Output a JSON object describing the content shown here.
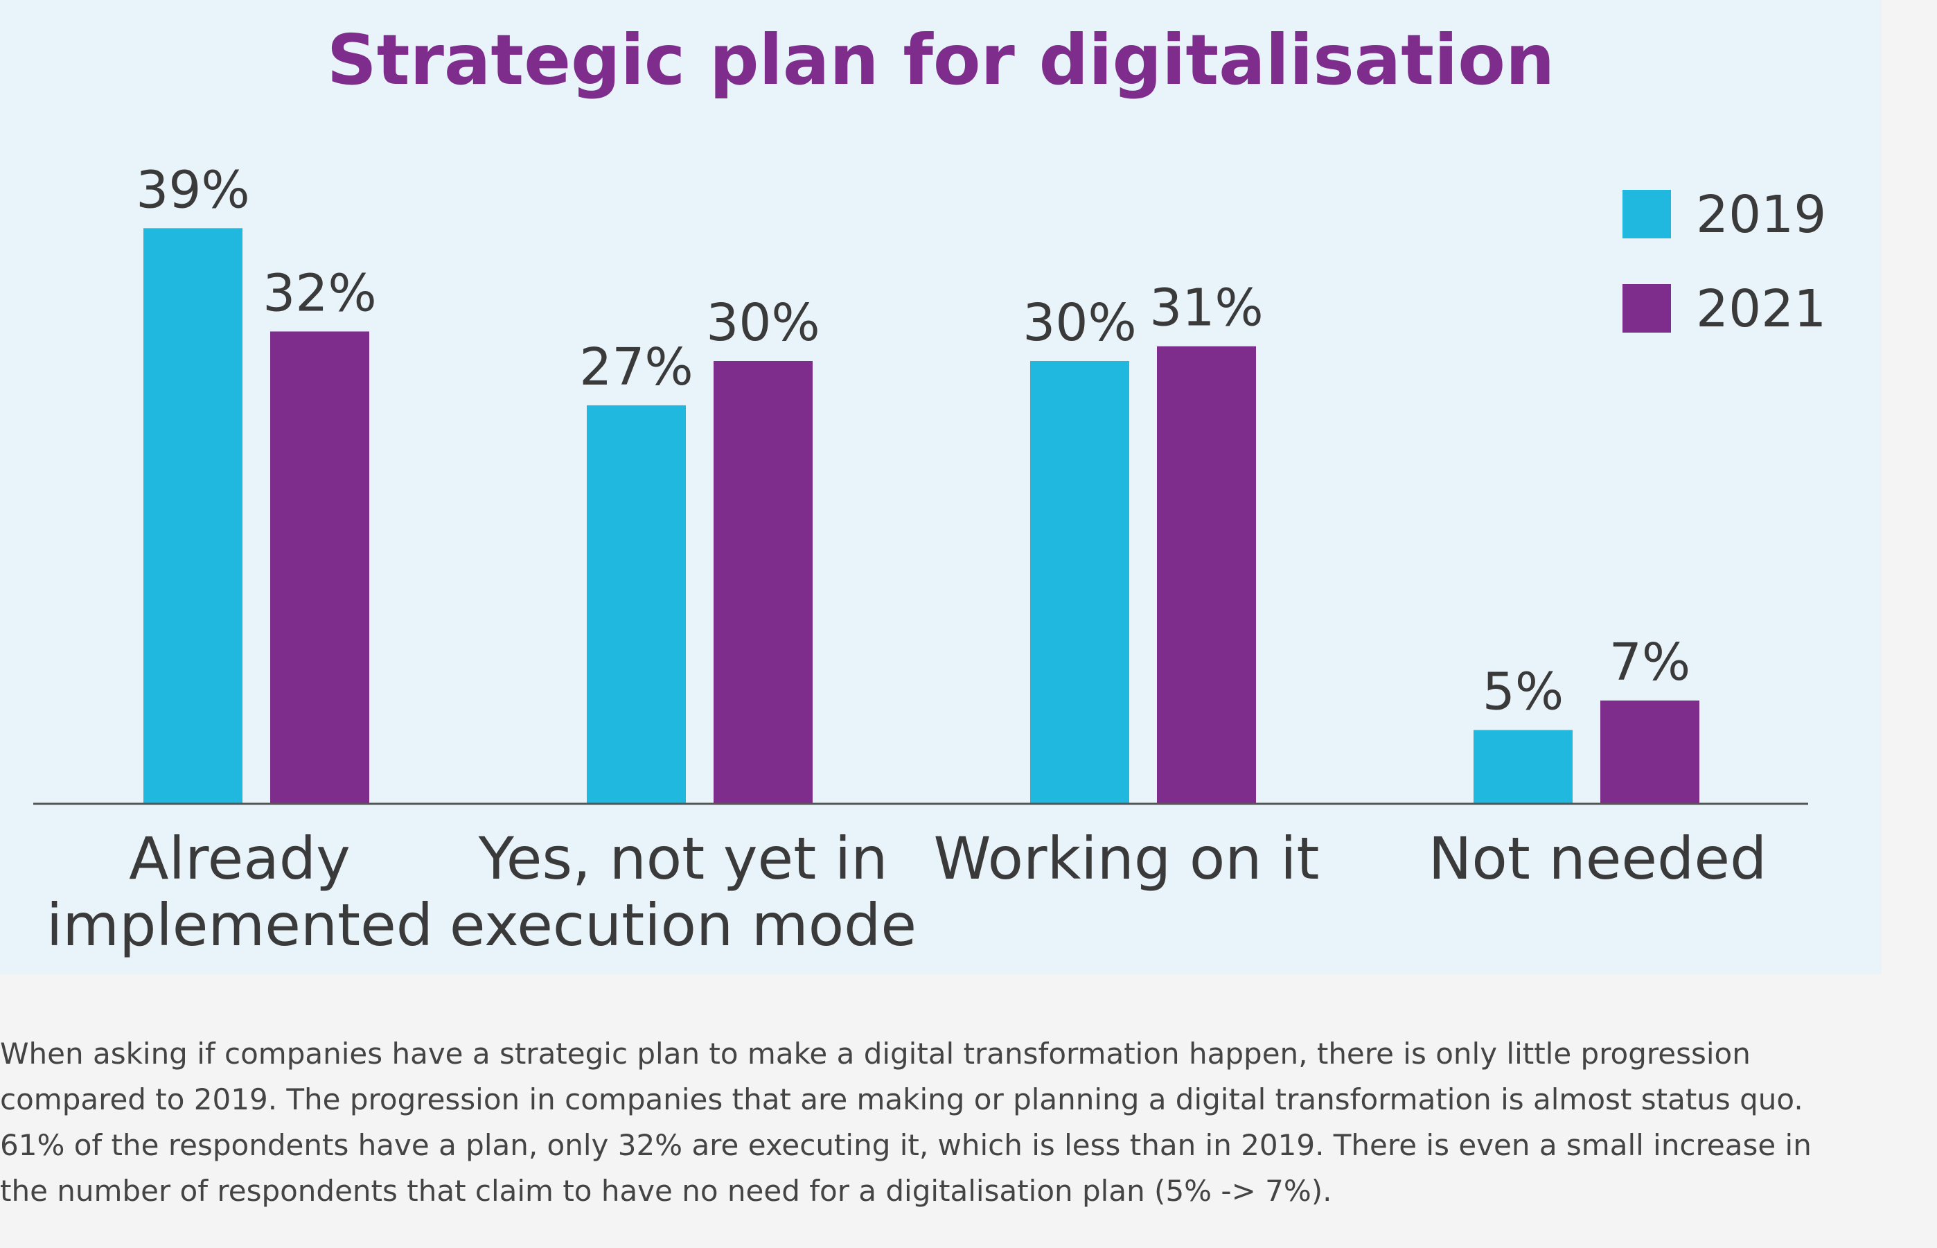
{
  "colors": {
    "panel_background": "#e8f3fa",
    "page_background": "#f4f4f4",
    "title": "#7e2d8c",
    "series_2019": "#21b8e0",
    "series_2021": "#7e2d8c",
    "axis": "#555555",
    "text": "#3a3a3a"
  },
  "chart_data": {
    "type": "bar",
    "title": "Strategic plan for digitalisation",
    "xlabel": "",
    "ylabel": "",
    "ylim": [
      0,
      40
    ],
    "grid": false,
    "legend_position": "top-right",
    "categories": [
      [
        "Already",
        "implemented"
      ],
      [
        "Yes, not yet in",
        "execution mode"
      ],
      [
        "Working on it"
      ],
      [
        "Not needed"
      ]
    ],
    "series": [
      {
        "name": "2019",
        "color": "#21b8e0",
        "values": [
          39,
          27,
          30,
          5
        ],
        "labels": [
          "39%",
          "27%",
          "30%",
          "5%"
        ]
      },
      {
        "name": "2021",
        "color": "#7e2d8c",
        "values": [
          32,
          30,
          31,
          7
        ],
        "labels": [
          "32%",
          "30%",
          "31%",
          "7%"
        ]
      }
    ]
  },
  "caption": {
    "lines": [
      "When asking if companies have a strategic plan to make a digital transformation happen, there is only little progression",
      "compared to 2019. The progression in companies that are making or planning a digital transformation is almost status quo.",
      "61% of the respondents have a plan, only 32% are executing it, which is less than in 2019. There is even a small increase in",
      "the number of respondents that claim to have no need for a digitalisation plan (5% -> 7%)."
    ]
  }
}
